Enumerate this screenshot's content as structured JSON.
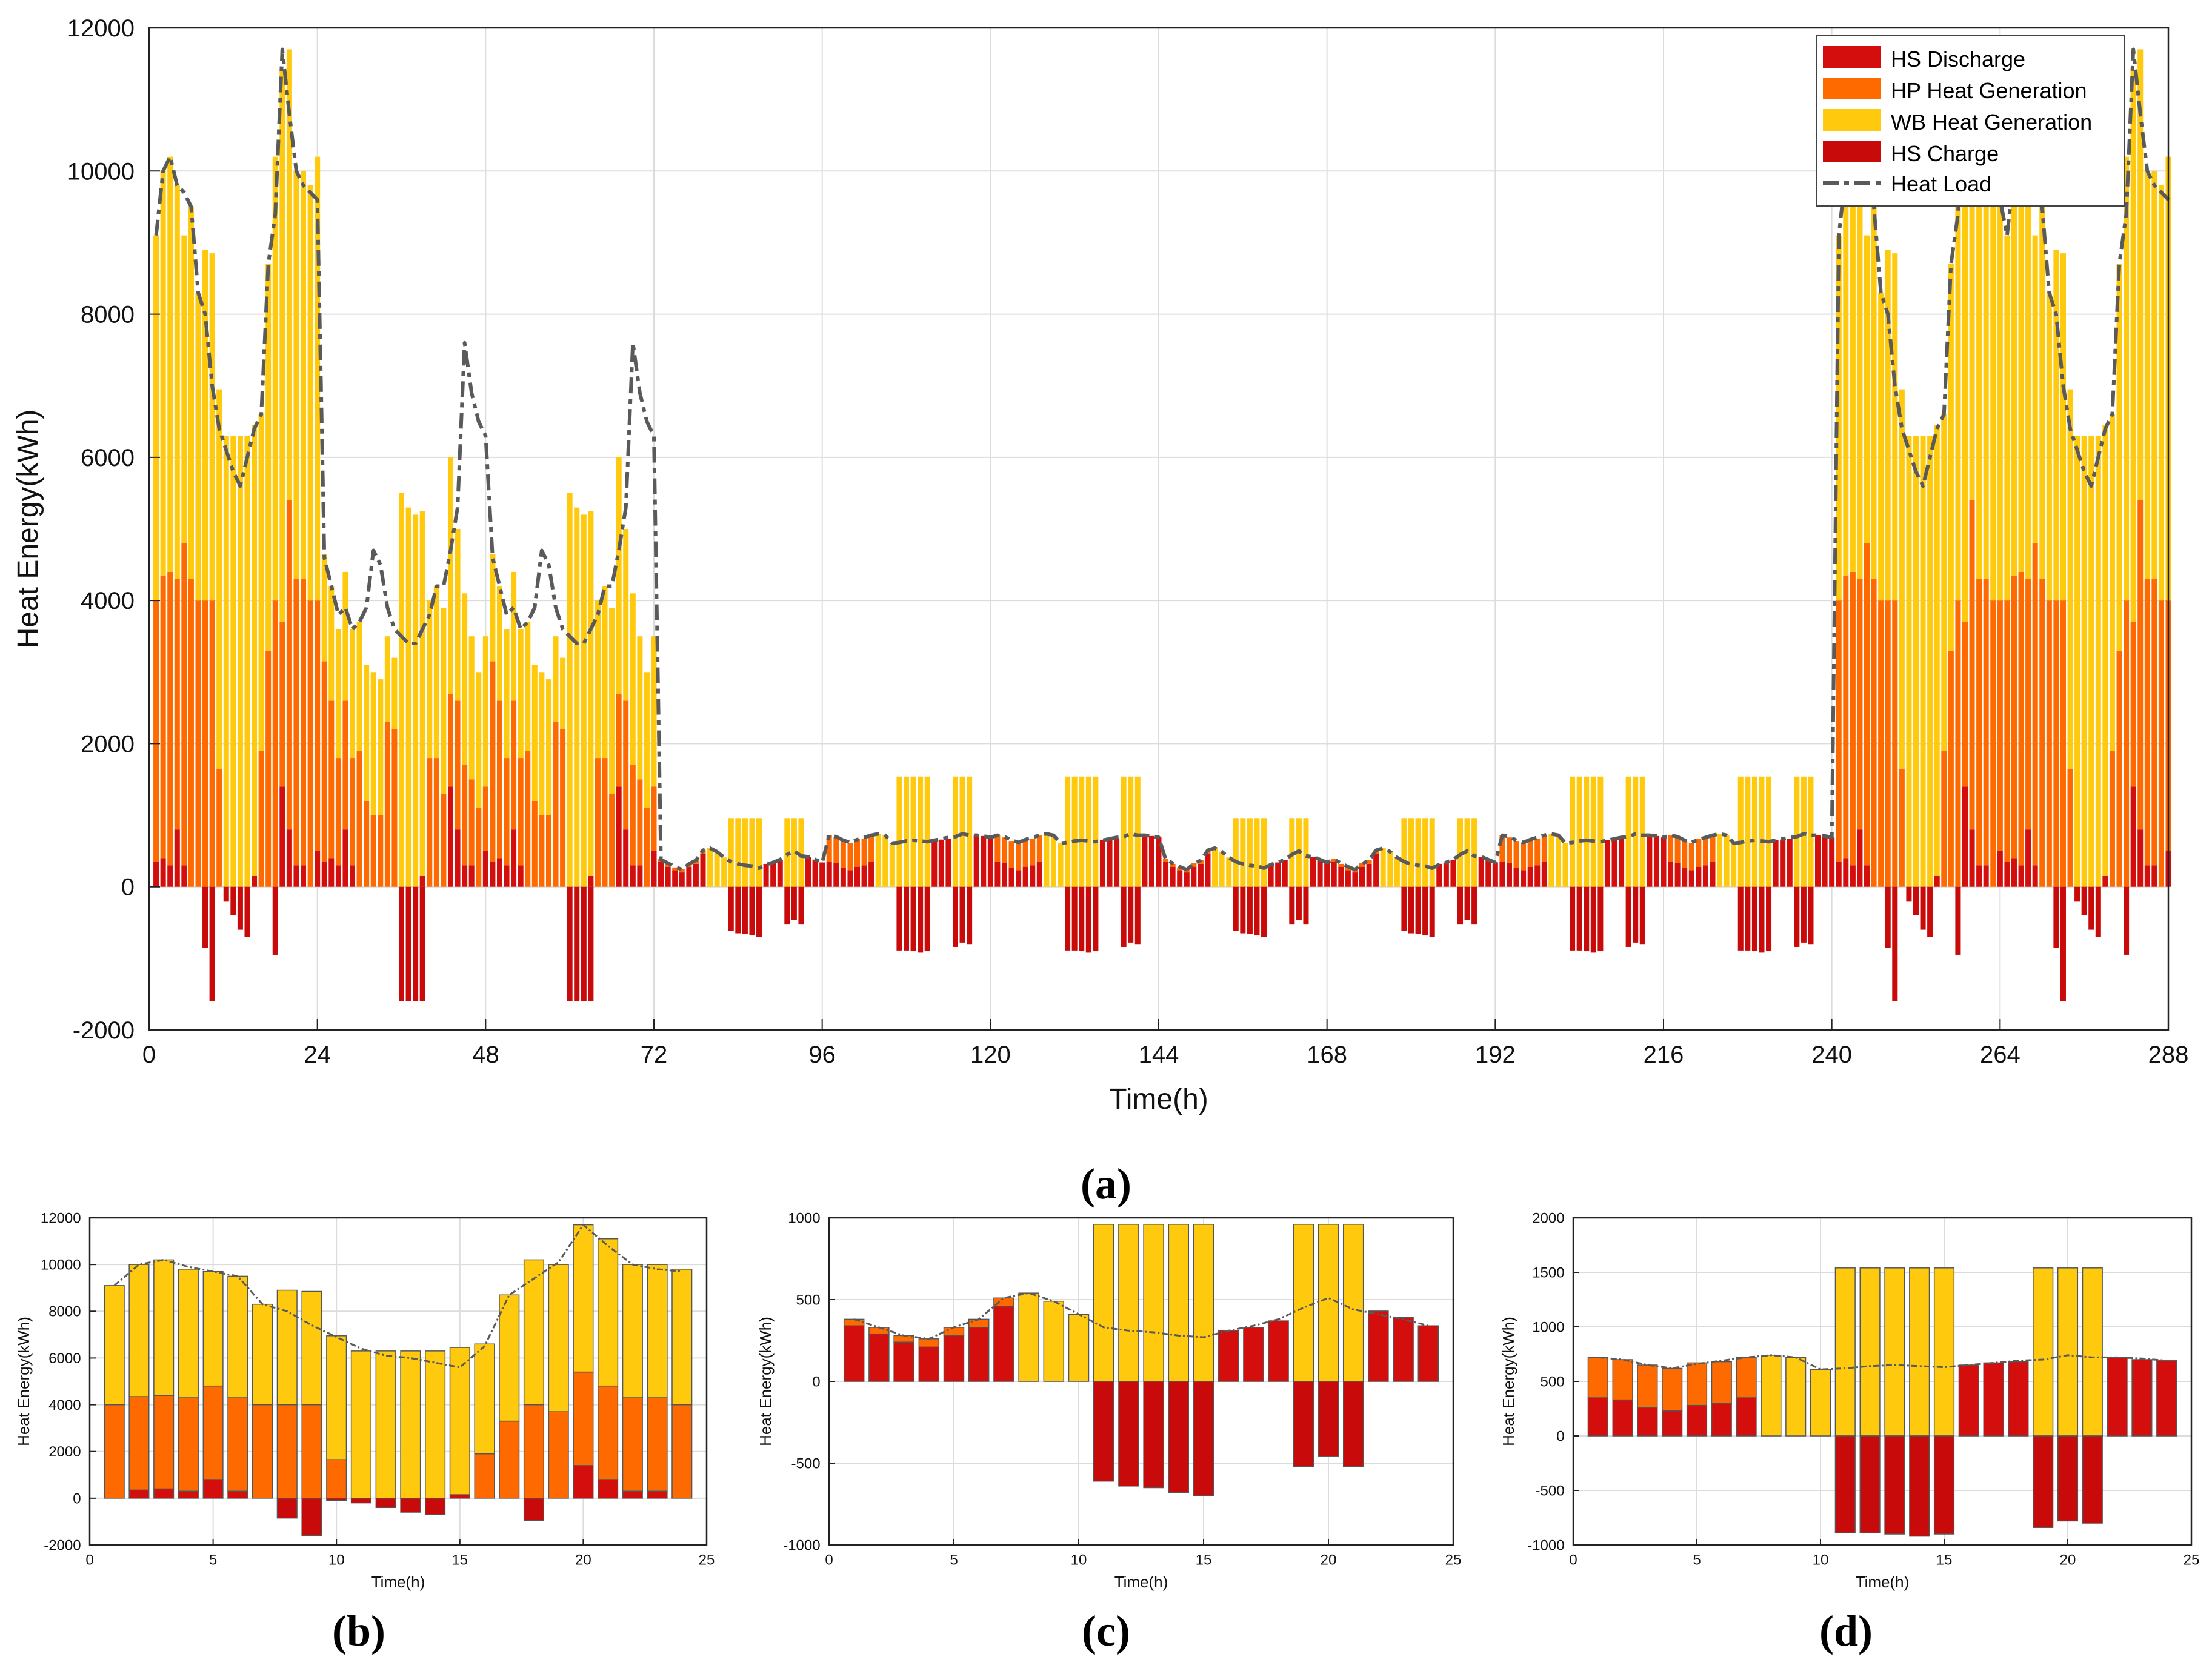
{
  "colors": {
    "hs_discharge": "#d40d0d",
    "hp": "#ff6a00",
    "wb": "#ffc90e",
    "hs_charge": "#c80a0a",
    "load": "#5a5a5a"
  },
  "legend": {
    "hs_discharge": "HS Discharge",
    "hp": "HP Heat Generation",
    "wb": "WB Heat Generation",
    "hs_charge": "HS Charge",
    "load": "Heat Load"
  },
  "captions": {
    "a": "(a)",
    "b": "(b)",
    "c": "(c)",
    "d": "(d)"
  },
  "chart_data": [
    {
      "id": "a",
      "type": "bar",
      "stacked": true,
      "xlabel": "Time(h)",
      "ylabel": "Heat Energy(kWh)",
      "xlim": [
        0,
        288
      ],
      "ylim": [
        -2000,
        12000
      ],
      "xticks": [
        0,
        24,
        48,
        72,
        96,
        120,
        144,
        168,
        192,
        216,
        240,
        264,
        288
      ],
      "yticks": [
        -2000,
        0,
        2000,
        4000,
        6000,
        8000,
        10000,
        12000
      ],
      "grid": true,
      "legend_position": "top-right",
      "day_profiles": {
        "cold": {
          "hs_discharge": [
            350,
            400,
            300,
            800,
            300,
            0,
            0,
            0,
            0,
            0,
            0,
            0,
            0,
            0,
            150,
            0,
            0,
            0,
            1400,
            800,
            300,
            300,
            0,
            500
          ],
          "hp": [
            3650,
            3950,
            4100,
            3500,
            4500,
            4300,
            4000,
            4000,
            4000,
            1650,
            0,
            0,
            0,
            0,
            0,
            1900,
            3300,
            4000,
            2300,
            4600,
            4000,
            4000,
            4000,
            3500
          ],
          "wb": [
            5100,
            5650,
            5800,
            5500,
            4300,
            5200,
            4300,
            4900,
            4850,
            5300,
            6300,
            6300,
            6300,
            6300,
            6300,
            4700,
            5400,
            6200,
            7700,
            6300,
            5700,
            5700,
            5800,
            6200
          ],
          "hs_charge": [
            0,
            0,
            0,
            0,
            0,
            0,
            0,
            -850,
            -1600,
            0,
            -200,
            -400,
            -600,
            -700,
            0,
            0,
            0,
            -950,
            0,
            0,
            0,
            0,
            0,
            0
          ],
          "load": [
            9100,
            10000,
            10200,
            9800,
            9700,
            9500,
            8300,
            8000,
            7000,
            6400,
            6100,
            5800,
            5600,
            6000,
            6400,
            6600,
            8700,
            9400,
            11700,
            10800,
            10000,
            9800,
            9700,
            9600
          ]
        },
        "mild": {
          "hs_discharge": [
            350,
            400,
            300,
            800,
            300,
            0,
            0,
            0,
            0,
            0,
            0,
            0,
            0,
            0,
            150,
            0,
            0,
            0,
            1400,
            800,
            300,
            300,
            0,
            500
          ],
          "hp": [
            2800,
            2200,
            1500,
            1800,
            1500,
            1900,
            1200,
            1000,
            1000,
            2300,
            2200,
            0,
            0,
            0,
            0,
            1800,
            1800,
            1300,
            1300,
            1800,
            1400,
            1200,
            1100,
            900
          ],
          "wb": [
            1500,
            1600,
            1800,
            1800,
            1800,
            1800,
            1900,
            2000,
            1900,
            1200,
            1000,
            5500,
            5300,
            5200,
            5100,
            2200,
            2400,
            2600,
            3300,
            2400,
            2400,
            2000,
            1900,
            2100
          ],
          "hs_charge": [
            0,
            0,
            0,
            0,
            0,
            0,
            0,
            0,
            0,
            0,
            0,
            -1600,
            -1600,
            -1600,
            -1600,
            0,
            0,
            0,
            0,
            0,
            0,
            0,
            0,
            0
          ],
          "load": [
            4600,
            4200,
            3800,
            3900,
            3600,
            3700,
            3900,
            4700,
            4500,
            3900,
            3600,
            3500,
            3400,
            3400,
            3600,
            3800,
            4200,
            4200,
            4700,
            5300,
            7600,
            6900,
            6500,
            6300
          ]
        },
        "warm": {
          "hs_discharge": [
            350,
            280,
            230,
            200,
            280,
            320,
            460,
            0,
            0,
            0,
            0,
            0,
            0,
            0,
            0,
            320,
            340,
            370,
            0,
            0,
            0,
            420,
            380,
            340
          ],
          "hp": [
            40,
            40,
            40,
            50,
            50,
            50,
            50,
            0,
            0,
            0,
            0,
            0,
            0,
            0,
            0,
            0,
            0,
            0,
            0,
            0,
            0,
            0,
            0,
            0
          ],
          "wb": [
            0,
            0,
            0,
            0,
            0,
            0,
            0,
            540,
            490,
            410,
            960,
            960,
            960,
            960,
            960,
            0,
            0,
            0,
            960,
            960,
            960,
            0,
            0,
            0
          ],
          "hs_charge": [
            0,
            0,
            0,
            0,
            0,
            0,
            0,
            0,
            0,
            0,
            -620,
            -650,
            -660,
            -680,
            -700,
            0,
            0,
            0,
            -520,
            -460,
            -520,
            0,
            0,
            0
          ],
          "load": [
            380,
            330,
            280,
            240,
            320,
            370,
            510,
            540,
            490,
            410,
            350,
            320,
            300,
            290,
            260,
            310,
            340,
            380,
            450,
            500,
            430,
            420,
            380,
            340
          ]
        },
        "hot": {
          "hs_discharge": [
            350,
            330,
            260,
            230,
            280,
            300,
            350,
            0,
            0,
            0,
            0,
            0,
            0,
            0,
            0,
            650,
            660,
            670,
            0,
            0,
            0,
            720,
            710,
            690
          ],
          "hp": [
            370,
            360,
            380,
            380,
            390,
            370,
            370,
            0,
            0,
            0,
            0,
            0,
            0,
            0,
            0,
            0,
            0,
            0,
            0,
            0,
            0,
            0,
            0,
            0
          ],
          "wb": [
            0,
            0,
            0,
            0,
            0,
            0,
            0,
            740,
            720,
            610,
            1540,
            1540,
            1540,
            1540,
            1540,
            0,
            0,
            0,
            1540,
            1540,
            1540,
            0,
            0,
            0
          ],
          "hs_charge": [
            0,
            0,
            0,
            0,
            0,
            0,
            0,
            0,
            0,
            0,
            -890,
            -890,
            -900,
            -920,
            -900,
            0,
            0,
            0,
            -840,
            -780,
            -800,
            0,
            0,
            0
          ],
          "load": [
            720,
            700,
            650,
            620,
            660,
            690,
            720,
            740,
            720,
            610,
            620,
            640,
            650,
            640,
            630,
            650,
            670,
            690,
            700,
            740,
            720,
            720,
            710,
            690
          ]
        }
      },
      "day_sequence": [
        "cold",
        "mild",
        "mild",
        "warm",
        "hot",
        "hot",
        "warm",
        "warm",
        "hot",
        "hot",
        "cold",
        "cold"
      ]
    },
    {
      "id": "b",
      "type": "bar",
      "stacked": true,
      "xlabel": "Time(h)",
      "ylabel": "Heat Energy(kWh)",
      "xlim": [
        0,
        25
      ],
      "ylim": [
        -2000,
        12000
      ],
      "xticks": [
        0,
        5,
        10,
        15,
        20,
        25
      ],
      "yticks": [
        -2000,
        0,
        2000,
        4000,
        6000,
        8000,
        10000,
        12000
      ],
      "hours": [
        1,
        2,
        3,
        4,
        5,
        6,
        7,
        8,
        9,
        10,
        11,
        12,
        13,
        14,
        15,
        16,
        17,
        18,
        19,
        20,
        21,
        22,
        23,
        24
      ],
      "hs_discharge": [
        0,
        350,
        400,
        300,
        800,
        300,
        0,
        0,
        0,
        0,
        0,
        0,
        0,
        0,
        150,
        0,
        0,
        0,
        0,
        1400,
        800,
        300,
        300,
        0
      ],
      "hp": [
        4000,
        4000,
        4000,
        4000,
        4000,
        4000,
        4000,
        4000,
        4000,
        1650,
        0,
        0,
        0,
        0,
        0,
        1900,
        3300,
        4000,
        3700,
        4000,
        4000,
        4000,
        4000,
        4000
      ],
      "wb": [
        5100,
        5650,
        5800,
        5500,
        4900,
        5200,
        4300,
        4900,
        4850,
        5300,
        6300,
        6300,
        6300,
        6300,
        6300,
        4700,
        5400,
        6200,
        6300,
        6300,
        6300,
        5700,
        5700,
        5800
      ],
      "hs_charge": [
        0,
        0,
        0,
        0,
        0,
        0,
        0,
        -850,
        -1600,
        -100,
        -200,
        -400,
        -600,
        -700,
        0,
        0,
        0,
        -950,
        0,
        0,
        0,
        0,
        0,
        0
      ],
      "load": [
        9100,
        10000,
        10200,
        9900,
        9700,
        9500,
        8300,
        8000,
        7400,
        6900,
        6400,
        6100,
        6000,
        5800,
        5600,
        6500,
        8700,
        9400,
        10100,
        11700,
        10800,
        10000,
        9800,
        9700
      ]
    },
    {
      "id": "c",
      "type": "bar",
      "stacked": true,
      "xlabel": "Time(h)",
      "ylabel": "Heat Energy(kWh)",
      "xlim": [
        0,
        25
      ],
      "ylim": [
        -1000,
        1000
      ],
      "xticks": [
        0,
        5,
        10,
        15,
        20,
        25
      ],
      "yticks": [
        -1000,
        -500,
        0,
        500,
        1000
      ],
      "hours": [
        1,
        2,
        3,
        4,
        5,
        6,
        7,
        8,
        9,
        10,
        11,
        12,
        13,
        14,
        15,
        16,
        17,
        18,
        19,
        20,
        21,
        22,
        23,
        24
      ],
      "hs_discharge": [
        340,
        290,
        240,
        210,
        280,
        330,
        460,
        0,
        0,
        0,
        0,
        0,
        0,
        0,
        0,
        310,
        330,
        370,
        0,
        0,
        0,
        430,
        390,
        340
      ],
      "hp": [
        40,
        40,
        40,
        50,
        50,
        50,
        50,
        0,
        0,
        0,
        0,
        0,
        0,
        0,
        0,
        0,
        0,
        0,
        0,
        0,
        0,
        0,
        0,
        0
      ],
      "wb": [
        0,
        0,
        0,
        0,
        0,
        0,
        0,
        540,
        490,
        410,
        960,
        960,
        960,
        960,
        960,
        0,
        0,
        0,
        960,
        960,
        960,
        0,
        0,
        0
      ],
      "hs_charge": [
        0,
        0,
        0,
        0,
        0,
        0,
        0,
        0,
        0,
        0,
        -610,
        -640,
        -650,
        -680,
        -700,
        0,
        0,
        0,
        -520,
        -460,
        -520,
        0,
        0,
        0
      ],
      "load": [
        380,
        330,
        280,
        260,
        330,
        380,
        510,
        540,
        490,
        410,
        330,
        310,
        300,
        280,
        270,
        310,
        340,
        380,
        450,
        510,
        440,
        410,
        380,
        340
      ]
    },
    {
      "id": "d",
      "type": "bar",
      "stacked": true,
      "xlabel": "Time(h)",
      "ylabel": "Heat Energy(kWh)",
      "xlim": [
        0,
        25
      ],
      "ylim": [
        -1000,
        2000
      ],
      "xticks": [
        0,
        5,
        10,
        15,
        20,
        25
      ],
      "yticks": [
        -1000,
        -500,
        0,
        500,
        1000,
        1500,
        2000
      ],
      "hours": [
        1,
        2,
        3,
        4,
        5,
        6,
        7,
        8,
        9,
        10,
        11,
        12,
        13,
        14,
        15,
        16,
        17,
        18,
        19,
        20,
        21,
        22,
        23,
        24
      ],
      "hs_discharge": [
        350,
        330,
        260,
        230,
        280,
        300,
        350,
        0,
        0,
        0,
        0,
        0,
        0,
        0,
        0,
        650,
        670,
        680,
        0,
        0,
        0,
        720,
        700,
        690
      ],
      "hp": [
        370,
        370,
        390,
        390,
        390,
        380,
        370,
        0,
        0,
        0,
        0,
        0,
        0,
        0,
        0,
        0,
        0,
        0,
        0,
        0,
        0,
        0,
        0,
        0
      ],
      "wb": [
        0,
        0,
        0,
        0,
        0,
        0,
        0,
        740,
        720,
        610,
        1540,
        1540,
        1540,
        1540,
        1540,
        0,
        0,
        0,
        1540,
        1540,
        1540,
        0,
        0,
        0
      ],
      "hs_charge": [
        0,
        0,
        0,
        0,
        0,
        0,
        0,
        0,
        0,
        0,
        -890,
        -890,
        -900,
        -920,
        -900,
        0,
        0,
        0,
        -840,
        -780,
        -800,
        0,
        0,
        0
      ],
      "load": [
        720,
        700,
        650,
        620,
        660,
        690,
        720,
        740,
        720,
        610,
        620,
        640,
        650,
        640,
        630,
        650,
        670,
        690,
        700,
        740,
        720,
        720,
        710,
        690
      ]
    }
  ]
}
